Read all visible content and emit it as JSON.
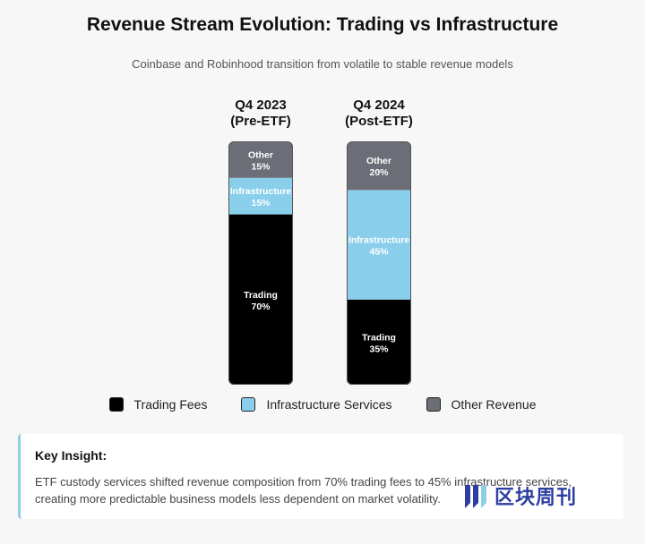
{
  "header": {
    "title": "Revenue Stream Evolution: Trading vs Infrastructure",
    "subtitle": "Coinbase and Robinhood transition from volatile to stable revenue models"
  },
  "chart_data": {
    "type": "bar",
    "stacked": true,
    "percent_scale": [
      0,
      100
    ],
    "categories": [
      {
        "line1": "Q4 2023",
        "line2": "(Pre-ETF)"
      },
      {
        "line1": "Q4 2024",
        "line2": "(Post-ETF)"
      }
    ],
    "series": [
      {
        "name": "Trading Fees",
        "segment_label": "Trading",
        "color": "#000000",
        "label_color": "#ffffff",
        "values": [
          70,
          35
        ]
      },
      {
        "name": "Infrastructure Services",
        "segment_label": "Infrastructure",
        "color": "#89cfec",
        "label_color": "#ffffff",
        "values": [
          15,
          45
        ]
      },
      {
        "name": "Other Revenue",
        "segment_label": "Other",
        "color": "#6b6e76",
        "label_color": "#ffffff",
        "values": [
          15,
          20
        ]
      }
    ],
    "legend_position": "bottom",
    "grid": false
  },
  "insight": {
    "title": "Key Insight:",
    "body": "ETF custody services shifted revenue composition from 70% trading fees to 45% infrastructure services, creating more predictable business models less dependent on market volatility."
  },
  "watermark": {
    "text": "区块周刊",
    "icon": "blockweekly-logo-icon",
    "color": "#2c3ea0"
  }
}
